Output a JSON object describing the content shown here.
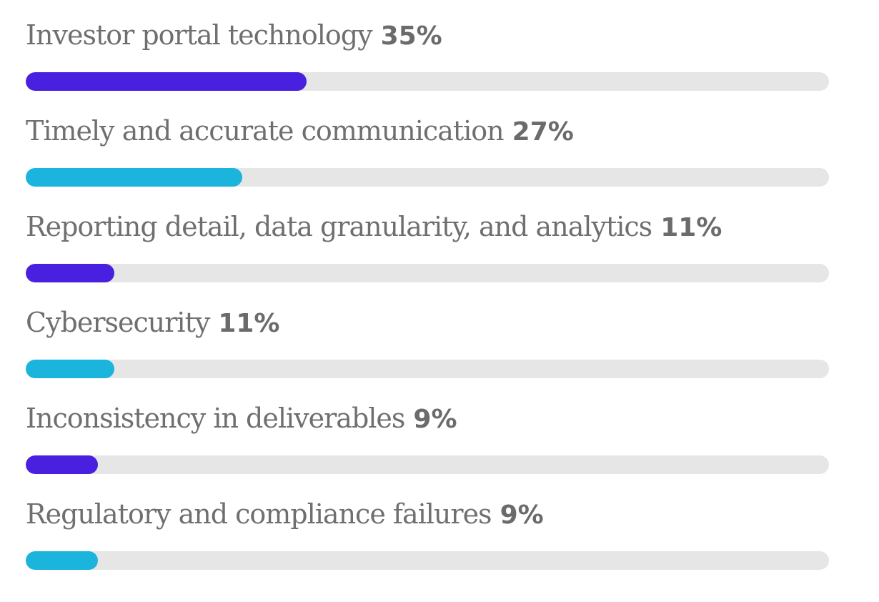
{
  "chart_data": {
    "type": "bar",
    "orientation": "horizontal",
    "xlim": [
      0,
      100
    ],
    "unit": "%",
    "categories": [
      "Investor portal technology",
      "Timely and accurate communication",
      "Reporting detail, data granularity, and analytics",
      "Cybersecurity",
      "Inconsistency in deliverables",
      "Regulatory and compliance failures"
    ],
    "values": [
      35,
      27,
      11,
      11,
      9,
      9
    ],
    "value_labels": [
      "35%",
      "27%",
      "11%",
      "11%",
      "9%",
      "9%"
    ],
    "bar_colors": [
      "#4a20e0",
      "#1ab4dc",
      "#4a20e0",
      "#1ab4dc",
      "#4a20e0",
      "#1ab4dc"
    ],
    "track_color": "#e6e6e6",
    "grid": false,
    "legend": "none"
  }
}
